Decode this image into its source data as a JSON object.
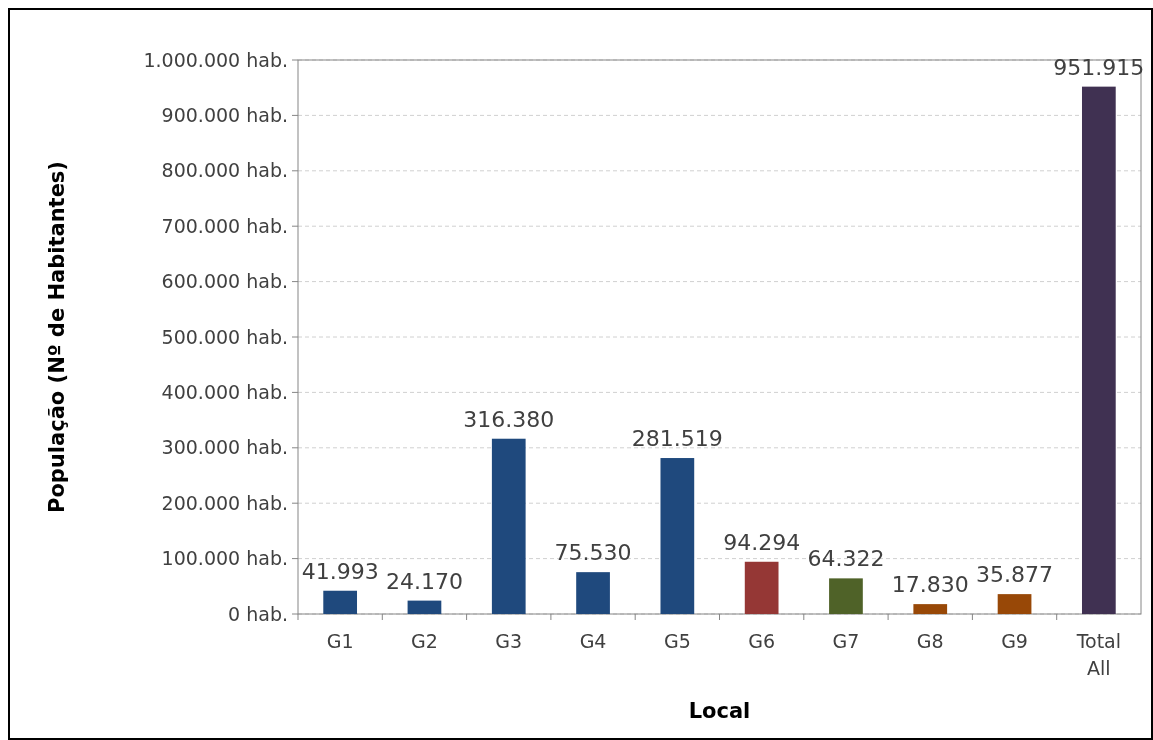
{
  "chart_data": {
    "type": "bar",
    "xlabel": "Local",
    "ylabel": "População (Nº de Habitantes)",
    "categories": [
      "G1",
      "G2",
      "G3",
      "G4",
      "G5",
      "G6",
      "G7",
      "G8",
      "G9",
      "Total All"
    ],
    "values": [
      41993,
      24170,
      316380,
      75530,
      281519,
      94294,
      64322,
      17830,
      35877,
      951915
    ],
    "colors": [
      "#1f497d",
      "#1f497d",
      "#1f497d",
      "#1f497d",
      "#1f497d",
      "#953735",
      "#4f6228",
      "#984807",
      "#984807",
      "#403152"
    ],
    "value_labels": [
      "41.993",
      "24.170",
      "316.380",
      "75.530",
      "281.519",
      "94.294",
      "64.322",
      "17.830",
      "35.877",
      "951.915"
    ],
    "ylim": [
      0,
      1000000
    ],
    "yticks": [
      {
        "value": 0,
        "label": "0 hab."
      },
      {
        "value": 100000,
        "label": "100.000 hab."
      },
      {
        "value": 200000,
        "label": "200.000 hab."
      },
      {
        "value": 300000,
        "label": "300.000 hab."
      },
      {
        "value": 400000,
        "label": "400.000 hab."
      },
      {
        "value": 500000,
        "label": "500.000 hab."
      },
      {
        "value": 600000,
        "label": "600.000 hab."
      },
      {
        "value": 700000,
        "label": "700.000 hab."
      },
      {
        "value": 800000,
        "label": "800.000 hab."
      },
      {
        "value": 900000,
        "label": "900.000 hab."
      },
      {
        "value": 1000000,
        "label": "1.000.000 hab."
      }
    ],
    "grid": "y"
  }
}
